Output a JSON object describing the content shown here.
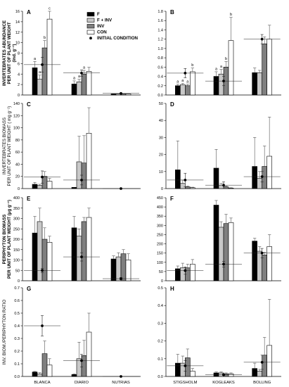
{
  "figure": {
    "colors": {
      "F": "#000000",
      "F + INV": "#c8c8c8",
      "INV": "#7f7f7f",
      "CON": "#ffffff",
      "axis": "#000000"
    },
    "row_labels": [
      {
        "lines": [
          "INVERTEBRATES ABUNDANCE",
          "PER UNIT OF PLANT WEIGHT",
          "(ind. g⁻¹)"
        ],
        "bold": true
      },
      {
        "lines": [
          "INVERTEBRATES BIOMASS",
          "PER UNIT OF PLANT WEIGHT  ( mg g⁻¹)"
        ],
        "bold": false
      },
      {
        "lines": [
          "PERIPHYTON BIOMASS",
          "PER UNIT OF PLANT WEIGHT  (µg g⁻¹)"
        ],
        "bold": true
      },
      {
        "lines": [
          "INV. BIOM./PERIPHYTON RATIO"
        ],
        "bold": false
      }
    ],
    "x_labels_left": [
      "BLANCA",
      "DIARIO",
      "NUTRIAS"
    ],
    "x_labels_right": [
      "STIGSHOLM",
      "KOGLEAKS",
      "BOLLING"
    ]
  },
  "chart_data": [
    {
      "panel": "A",
      "type": "bar",
      "categories": [
        "BLANCA",
        "DIARIO",
        "NUTRIAS"
      ],
      "ylim": [
        0,
        16
      ],
      "yticks": [
        0,
        2,
        4,
        6,
        8,
        10,
        12,
        14,
        16
      ],
      "series": [
        {
          "name": "F",
          "values": [
            5.2,
            2.1,
            0.2
          ],
          "err": [
            1.2,
            0.6,
            0.05
          ]
        },
        {
          "name": "F + INV",
          "values": [
            3.0,
            2.5,
            0.2
          ],
          "err": [
            0.8,
            0.5,
            0.05
          ]
        },
        {
          "name": "INV",
          "values": [
            9.0,
            4.0,
            0.25
          ],
          "err": [
            1.4,
            0.7,
            0.05
          ]
        },
        {
          "name": "CON",
          "values": [
            14.5,
            4.5,
            0.2
          ],
          "err": [
            1.5,
            0.8,
            0.05
          ]
        }
      ],
      "initial": {
        "values": [
          5.8,
          4.2,
          0.3
        ],
        "err": [
          1.4,
          0.6,
          0.05
        ]
      },
      "letters": [
        [
          "a",
          "a",
          "b",
          "c"
        ],
        [
          "a",
          "a",
          "a",
          ""
        ],
        [
          "",
          "",
          "",
          ""
        ]
      ],
      "legend": [
        "F",
        "F + INV",
        "INV",
        "CON",
        "INITIAL CONDITION"
      ]
    },
    {
      "panel": "B",
      "type": "bar",
      "categories": [
        "STIGSHOLM",
        "KOGLEAKS",
        "BOLLING"
      ],
      "ylim": [
        0,
        1.8
      ],
      "yticks": [
        0.0,
        0.2,
        0.4,
        0.6,
        0.8,
        1.0,
        1.2,
        1.4,
        1.6,
        1.8
      ],
      "series": [
        {
          "name": "F",
          "values": [
            0.2,
            0.4,
            0.48
          ],
          "err": [
            0.03,
            0.1,
            0.1
          ]
        },
        {
          "name": "F + INV",
          "values": [
            0.22,
            0.45,
            0.48
          ],
          "err": [
            0.03,
            0.1,
            0.05
          ]
        },
        {
          "name": "INV",
          "values": [
            0.2,
            0.6,
            1.1
          ],
          "err": [
            0.03,
            0.12,
            0.15
          ]
        },
        {
          "name": "CON",
          "values": [
            0.5,
            1.17,
            1.2
          ],
          "err": [
            0.08,
            0.5,
            0.3
          ]
        }
      ],
      "initial": {
        "values": [
          0.47,
          0.3,
          1.2
        ],
        "err": [
          0.1,
          0.1,
          0.1
        ]
      },
      "letters": [
        [
          "a",
          "a",
          "a",
          "b"
        ],
        [
          "a",
          "a",
          "b",
          "b"
        ],
        [
          "",
          "",
          "",
          ""
        ]
      ]
    },
    {
      "panel": "C",
      "type": "bar",
      "categories": [
        "BLANCA",
        "DIARIO",
        "NUTRIAS"
      ],
      "ylim": [
        0,
        140
      ],
      "yticks": [
        0,
        20,
        40,
        60,
        80,
        100,
        120,
        140
      ],
      "series": [
        {
          "name": "F",
          "values": [
            7,
            2,
            0
          ],
          "err": [
            3,
            0,
            0
          ]
        },
        {
          "name": "F + INV",
          "values": [
            5,
            44,
            0
          ],
          "err": [
            2,
            42,
            0
          ]
        },
        {
          "name": "INV",
          "values": [
            20,
            42,
            0
          ],
          "err": [
            8,
            45,
            0
          ]
        },
        {
          "name": "CON",
          "values": [
            12,
            91,
            0
          ],
          "err": [
            5,
            42,
            0
          ]
        }
      ],
      "initial": {
        "values": [
          19,
          14,
          0
        ],
        "err": [
          10,
          8,
          0
        ]
      }
    },
    {
      "panel": "D",
      "type": "bar",
      "categories": [
        "STIGSHOLM",
        "KOGLEAKS",
        "BOLLING"
      ],
      "ylim": [
        0,
        50
      ],
      "yticks": [
        0,
        10,
        20,
        30,
        40,
        50
      ],
      "series": [
        {
          "name": "F",
          "values": [
            11,
            12,
            13
          ],
          "err": [
            17,
            11,
            17
          ]
        },
        {
          "name": "F + INV",
          "values": [
            3,
            2,
            6
          ],
          "err": [
            2,
            1,
            4
          ]
        },
        {
          "name": "INV",
          "values": [
            1,
            1,
            13
          ],
          "err": [
            0.5,
            0.5,
            12
          ]
        },
        {
          "name": "CON",
          "values": [
            0.5,
            0.3,
            19
          ],
          "err": [
            0.3,
            0.2,
            23
          ]
        }
      ],
      "initial": {
        "values": [
          5,
          2,
          7
        ],
        "err": [
          4,
          2,
          3
        ]
      }
    },
    {
      "panel": "E",
      "type": "bar",
      "categories": [
        "BLANCA",
        "DIARIO",
        "NUTRIAS"
      ],
      "ylim": [
        0,
        400
      ],
      "yticks": [
        0,
        50,
        100,
        150,
        200,
        250,
        300,
        350,
        400
      ],
      "series": [
        {
          "name": "F",
          "values": [
            230,
            255,
            105
          ],
          "err": [
            80,
            55,
            15
          ]
        },
        {
          "name": "F + INV",
          "values": [
            285,
            215,
            115
          ],
          "err": [
            65,
            35,
            20
          ]
        },
        {
          "name": "INV",
          "values": [
            200,
            285,
            130
          ],
          "err": [
            55,
            20,
            20
          ]
        },
        {
          "name": "CON",
          "values": [
            185,
            305,
            100
          ],
          "err": [
            30,
            45,
            30
          ]
        }
      ],
      "initial": {
        "values": [
          50,
          115,
          10
        ],
        "err": [
          10,
          20,
          5
        ]
      }
    },
    {
      "panel": "F",
      "type": "bar",
      "categories": [
        "STIGSHOLM",
        "KOGLEAKS",
        "BOLLING"
      ],
      "ylim": [
        0,
        450
      ],
      "yticks": [
        0,
        50,
        100,
        150,
        200,
        250,
        300,
        350,
        400,
        450
      ],
      "series": [
        {
          "name": "F",
          "values": [
            65,
            410,
            215
          ],
          "err": [
            15,
            25,
            15
          ]
        },
        {
          "name": "F + INV",
          "values": [
            70,
            290,
            160
          ],
          "err": [
            25,
            30,
            25
          ]
        },
        {
          "name": "INV",
          "values": [
            70,
            310,
            140
          ],
          "err": [
            20,
            50,
            15
          ]
        },
        {
          "name": "CON",
          "values": [
            90,
            315,
            185
          ],
          "err": [
            25,
            25,
            65
          ]
        }
      ],
      "initial": {
        "values": [
          55,
          90,
          150
        ],
        "err": [
          20,
          15,
          25
        ]
      }
    },
    {
      "panel": "G",
      "type": "bar",
      "categories": [
        "BLANCA",
        "DIARIO",
        "NUTRIAS"
      ],
      "ylim": [
        0,
        0.7
      ],
      "yticks": [
        0.0,
        0.1,
        0.2,
        0.3,
        0.4,
        0.5,
        0.6,
        0.7
      ],
      "series": [
        {
          "name": "F",
          "values": [
            0.035,
            0.015,
            0
          ],
          "err": [
            0.005,
            0.005,
            0
          ]
        },
        {
          "name": "F + INV",
          "values": [
            0.02,
            0.14,
            0
          ],
          "err": [
            0.01,
            0.13,
            0
          ]
        },
        {
          "name": "INV",
          "values": [
            0.18,
            0.165,
            0
          ],
          "err": [
            0.1,
            0.12,
            0
          ]
        },
        {
          "name": "CON",
          "values": [
            0.09,
            0.35,
            0
          ],
          "err": [
            0.05,
            0.15,
            0
          ]
        }
      ],
      "initial": {
        "values": [
          0.4,
          0.125,
          0
        ],
        "err": [
          0.08,
          0.05,
          0
        ]
      }
    },
    {
      "panel": "H",
      "type": "bar",
      "categories": [
        "STIGSHOLM",
        "KOGLEAKS",
        "BOLLING"
      ],
      "ylim": [
        0,
        0.5
      ],
      "yticks": [
        0.0,
        0.1,
        0.2,
        0.3,
        0.4,
        0.5
      ],
      "series": [
        {
          "name": "F",
          "values": [
            0.075,
            0.02,
            0.045
          ],
          "err": [
            0.05,
            0.005,
            0.03
          ]
        },
        {
          "name": "F + INV",
          "values": [
            0.075,
            0.02,
            0.03
          ],
          "err": [
            0.04,
            0.005,
            0.01
          ]
        },
        {
          "name": "INV",
          "values": [
            0.105,
            0.015,
            0.12
          ],
          "err": [
            0.05,
            0.005,
            0.1
          ]
        },
        {
          "name": "CON",
          "values": [
            0.03,
            0.015,
            0.175
          ],
          "err": [
            0.015,
            0.005,
            0.26
          ]
        }
      ],
      "initial": {
        "values": [
          0.06,
          0.01,
          0.08
        ],
        "err": [
          0.03,
          0.005,
          0.04
        ]
      }
    }
  ]
}
